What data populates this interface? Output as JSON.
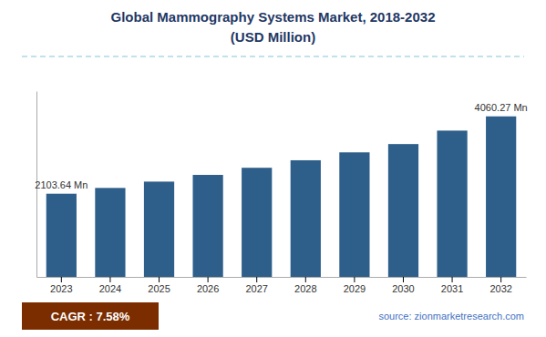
{
  "chart_data": {
    "type": "bar",
    "title": "Global Mammography Systems Market, 2018-2032",
    "subtitle": "(USD Million)",
    "categories": [
      "2023",
      "2024",
      "2025",
      "2026",
      "2027",
      "2028",
      "2029",
      "2030",
      "2031",
      "2032"
    ],
    "values": [
      2103.64,
      2250,
      2410,
      2580,
      2760,
      2950,
      3150,
      3360,
      3700,
      4060.27
    ],
    "value_labels": [
      "2103.64 Mn",
      null,
      null,
      null,
      null,
      null,
      null,
      null,
      null,
      "4060.27 Mn"
    ],
    "data_labels": true,
    "color": "#2E5F8A",
    "ylim": [
      0,
      4700
    ],
    "grid": false,
    "tick_labels": "x",
    "annotations": [
      "CAGR : 7.58%",
      "source: zionmarketresearch.com"
    ]
  }
}
